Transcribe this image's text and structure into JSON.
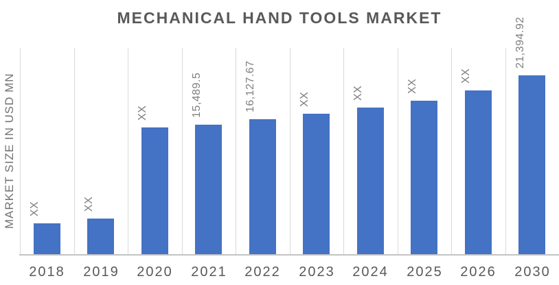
{
  "chart_data": {
    "type": "bar",
    "title": "MECHANICAL HAND TOOLS MARKET",
    "xlabel": "",
    "ylabel": "MARKET SIZE IN USD MN",
    "unit": "USD MN",
    "categories": [
      "2018",
      "2019",
      "2020",
      "2021",
      "2022",
      "2023",
      "2024",
      "2025",
      "2026",
      "2030"
    ],
    "values": [
      3700,
      4250,
      15200,
      15489.5,
      16127.67,
      16800,
      17500,
      18400,
      19600,
      21394.92
    ],
    "bar_labels": [
      "XX",
      "XX",
      "XX",
      "15,489.5",
      "16,127.67",
      "XX",
      "XX",
      "XX",
      "XX",
      "21,394.92"
    ],
    "labeled_values_only": "bars marked XX are estimated from bar heights; 2021=15,489.5, 2022=16,127.67, 2030=21,394.92 are printed on the chart",
    "ylim": [
      0,
      25000
    ],
    "grid": "vertical category separator lines only",
    "legend": "none",
    "colors": {
      "bar": "#4472c4",
      "title_text": "#595959",
      "axis_text": "#595959",
      "data_label_text": "#7f7f7f",
      "y_axis_title_text": "#737373",
      "gridline": "#d9d9d9",
      "axis_line": "#c3c3c3",
      "background": "#ffffff"
    }
  }
}
